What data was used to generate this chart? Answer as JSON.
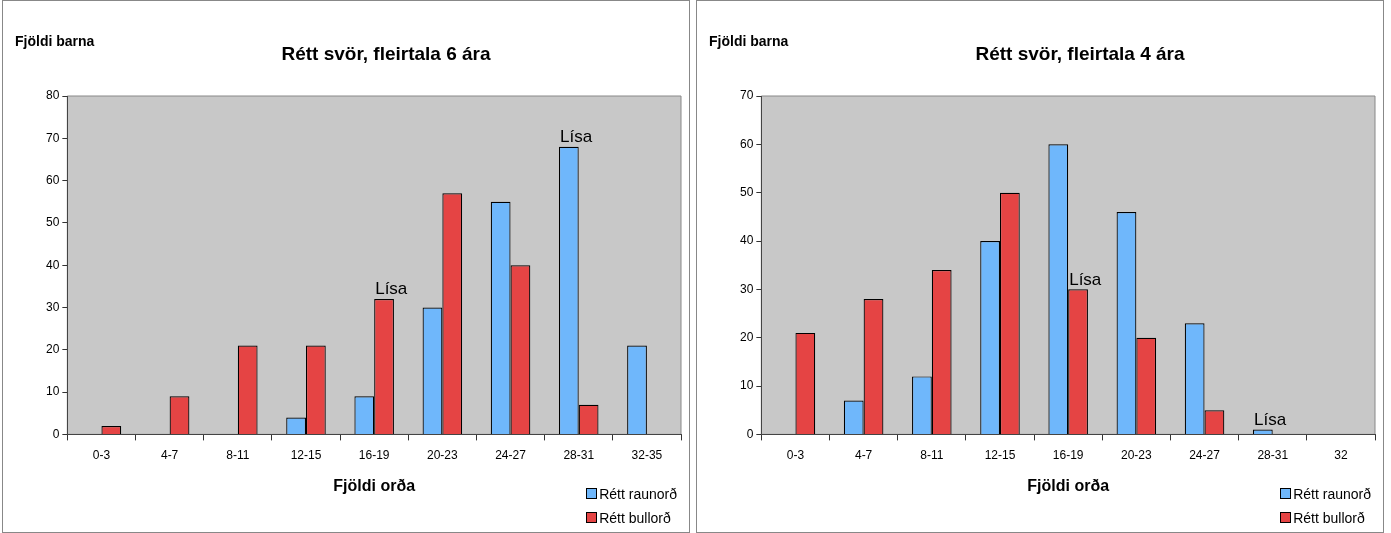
{
  "chart_data": [
    {
      "type": "bar",
      "title": "Rétt svör, fleirtala 6 ára",
      "xlabel": "Fjöldi orða",
      "ylabel": "Fjöldi barna",
      "categories": [
        "0-3",
        "4-7",
        "8-11",
        "12-15",
        "16-19",
        "20-23",
        "24-27",
        "28-31",
        "32-35"
      ],
      "series": [
        {
          "name": "Rétt raunorð",
          "color": "#6fb7fb",
          "values": [
            null,
            null,
            null,
            4,
            9,
            30,
            55,
            68,
            21
          ]
        },
        {
          "name": "Rétt bullorð",
          "color": "#e54444",
          "values": [
            2,
            9,
            21,
            21,
            32,
            57,
            40,
            7,
            null
          ]
        }
      ],
      "ylim": [
        0,
        80
      ],
      "yticks": [
        0,
        10,
        20,
        30,
        40,
        50,
        60,
        70,
        80
      ],
      "grid": false,
      "legend": "bottom right",
      "annotations": [
        {
          "text": "Lísa",
          "x": "16-19",
          "y": 32
        },
        {
          "text": "Lísa",
          "x": "28-31",
          "y": 68
        }
      ]
    },
    {
      "type": "bar",
      "title": "Rétt svör, fleirtala 4 ára",
      "xlabel": "Fjöldi orða",
      "ylabel": "Fjöldi barna",
      "categories": [
        "0-3",
        "4-7",
        "8-11",
        "12-15",
        "16-19",
        "20-23",
        "24-27",
        "28-31",
        "32"
      ],
      "series": [
        {
          "name": "Rétt raunorð",
          "color": "#6fb7fb",
          "values": [
            null,
            7,
            12,
            40,
            60,
            46,
            23,
            1,
            null
          ]
        },
        {
          "name": "Rétt bullorð",
          "color": "#e54444",
          "values": [
            21,
            28,
            34,
            50,
            30,
            20,
            5,
            null,
            null
          ]
        }
      ],
      "ylim": [
        0,
        70
      ],
      "yticks": [
        0,
        10,
        20,
        30,
        40,
        50,
        60,
        70
      ],
      "grid": false,
      "legend": "bottom right",
      "annotations": [
        {
          "text": "Lísa",
          "x": "16-19",
          "y": 30
        },
        {
          "text": "Lísa",
          "x": "28-31",
          "y": 1
        }
      ]
    }
  ]
}
